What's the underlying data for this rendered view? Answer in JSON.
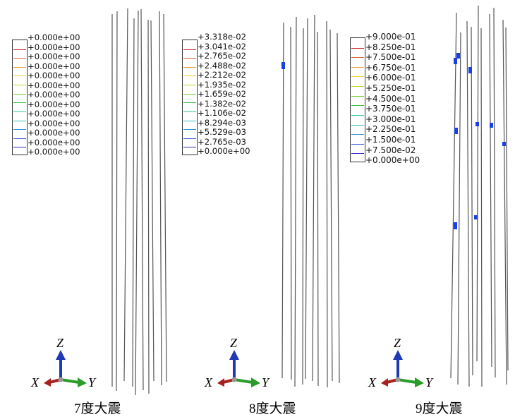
{
  "panels": [
    {
      "caption": "7度大震",
      "legend": [
        "+0.000e+00",
        "+0.000e+00",
        "+0.000e+00",
        "+0.000e+00",
        "+0.000e+00",
        "+0.000e+00",
        "+0.000e+00",
        "+0.000e+00",
        "+0.000e+00",
        "+0.000e+00",
        "+0.000e+00",
        "+0.000e+00",
        "+0.000e+00"
      ]
    },
    {
      "caption": "8度大震",
      "legend": [
        "+3.318e-02",
        "+3.041e-02",
        "+2.765e-02",
        "+2.488e-02",
        "+2.212e-02",
        "+1.935e-02",
        "+1.659e-02",
        "+1.382e-02",
        "+1.106e-02",
        "+8.294e-03",
        "+5.529e-03",
        "+2.765e-03",
        "+0.000e+00"
      ]
    },
    {
      "caption": "9度大震",
      "legend": [
        "+9.000e-01",
        "+8.250e-01",
        "+7.500e-01",
        "+6.750e-01",
        "+6.000e-01",
        "+5.250e-01",
        "+4.500e-01",
        "+3.750e-01",
        "+3.000e-01",
        "+2.250e-01",
        "+1.500e-01",
        "+7.500e-02",
        "+0.000e+00"
      ]
    }
  ],
  "axes": {
    "z": "Z",
    "x": "X",
    "y": "Y"
  },
  "colors": {
    "legend_swatches": [
      "#cc2222",
      "#e06a3a",
      "#f0a040",
      "#e8d030",
      "#b8d830",
      "#70d030",
      "#40c040",
      "#30c890",
      "#30c0c0",
      "#3090d8",
      "#4060e0",
      "#3030c0"
    ],
    "hinge": "#1a3fe6",
    "z_axis": "#1f3ab5",
    "y_axis": "#2a9c2a",
    "x_axis": "#a82020"
  }
}
